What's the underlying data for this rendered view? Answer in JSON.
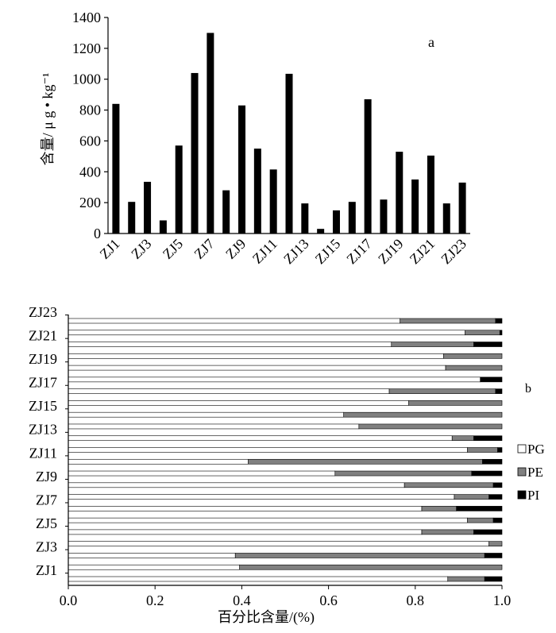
{
  "chart_data": [
    {
      "type": "bar",
      "panel_label": "a",
      "ylabel": "含量/ μ g • kg⁻¹",
      "ylim": [
        0,
        1400
      ],
      "yticks": [
        0,
        200,
        400,
        600,
        800,
        1000,
        1200,
        1400
      ],
      "categories": [
        "ZJ1",
        "ZJ2",
        "ZJ3",
        "ZJ4",
        "ZJ5",
        "ZJ6",
        "ZJ7",
        "ZJ8",
        "ZJ9",
        "ZJ10",
        "ZJ11",
        "ZJ12",
        "ZJ13",
        "ZJ14",
        "ZJ15",
        "ZJ16",
        "ZJ17",
        "ZJ18",
        "ZJ19",
        "ZJ20",
        "ZJ21",
        "ZJ22",
        "ZJ23"
      ],
      "tick_labels": [
        "ZJ1",
        "",
        "ZJ3",
        "",
        "ZJ5",
        "",
        "ZJ7",
        "",
        "ZJ9",
        "",
        "ZJ11",
        "",
        "ZJ13",
        "",
        "ZJ15",
        "",
        "ZJ17",
        "",
        "ZJ19",
        "",
        "ZJ21",
        "",
        "ZJ23"
      ],
      "values": [
        840,
        205,
        335,
        85,
        570,
        1040,
        1300,
        280,
        830,
        550,
        415,
        1035,
        195,
        30,
        150,
        205,
        870,
        220,
        530,
        350,
        505,
        195,
        330
      ],
      "bar_color": "#000000",
      "grid": false,
      "legend": "none"
    },
    {
      "type": "bar",
      "orientation": "horizontal",
      "stacked": true,
      "panel_label": "b",
      "xlabel": "百分比含量/(%)",
      "xlim": [
        0,
        1.0
      ],
      "xticks": [
        "0.0",
        "0.2",
        "0.4",
        "0.6",
        "0.8",
        "1.0"
      ],
      "categories": [
        "ZJ1",
        "ZJ2",
        "ZJ3",
        "ZJ4",
        "ZJ5",
        "ZJ6",
        "ZJ7",
        "ZJ8",
        "ZJ9",
        "ZJ10",
        "ZJ11",
        "ZJ12",
        "ZJ13",
        "ZJ14",
        "ZJ15",
        "ZJ16",
        "ZJ17",
        "ZJ18",
        "ZJ19",
        "ZJ20",
        "ZJ21",
        "ZJ22",
        "ZJ23"
      ],
      "tick_labels": [
        "ZJ1",
        "",
        "ZJ3",
        "",
        "ZJ5",
        "",
        "ZJ7",
        "",
        "ZJ9",
        "",
        "ZJ11",
        "",
        "ZJ13",
        "",
        "ZJ15",
        "",
        "ZJ17",
        "",
        "ZJ19",
        "",
        "ZJ21",
        "",
        "ZJ23"
      ],
      "series": [
        {
          "name": "PG",
          "color": "#ffffff",
          "values": [
            0.875,
            0.395,
            0.385,
            0.97,
            0.815,
            0.92,
            0.815,
            0.89,
            0.775,
            0.615,
            0.415,
            0.92,
            0.885,
            0.67,
            0.635,
            0.785,
            0.74,
            0.95,
            0.87,
            0.865,
            0.745,
            0.915,
            0.765
          ]
        },
        {
          "name": "PE",
          "color": "#808080",
          "values": [
            0.085,
            0.605,
            0.575,
            0.03,
            0.12,
            0.06,
            0.08,
            0.08,
            0.205,
            0.315,
            0.54,
            0.07,
            0.05,
            0.33,
            0.365,
            0.215,
            0.245,
            0.0,
            0.13,
            0.135,
            0.19,
            0.08,
            0.22
          ]
        },
        {
          "name": "PI",
          "color": "#000000",
          "values": [
            0.04,
            0.0,
            0.04,
            0.0,
            0.065,
            0.02,
            0.105,
            0.03,
            0.02,
            0.07,
            0.045,
            0.01,
            0.065,
            0.0,
            0.0,
            0.0,
            0.015,
            0.05,
            0.0,
            0.0,
            0.065,
            0.005,
            0.015
          ]
        }
      ],
      "legend": "right"
    }
  ]
}
